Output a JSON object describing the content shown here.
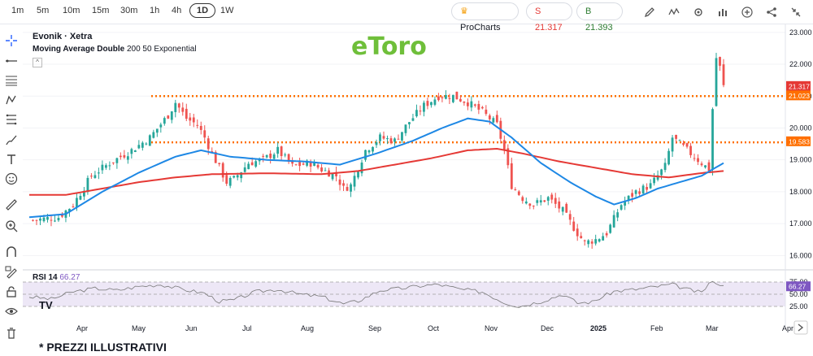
{
  "timeframes": [
    "1m",
    "5m",
    "10m",
    "15m",
    "30m",
    "1h",
    "4h",
    "1D",
    "1W"
  ],
  "active_timeframe": "1D",
  "procharts_label": "ProCharts",
  "sell_label": "S 21.317",
  "buy_label": "B 21.393",
  "colors": {
    "sell": "#e53935",
    "buy": "#2e7d32",
    "bull": "#26a69a",
    "bear": "#ef5350",
    "ema50": "#1e88e5",
    "ema200": "#e53935",
    "level": "#ff6f00",
    "rsi": "#7e57c2"
  },
  "chart": {
    "symbol": "Evonik · Xetra",
    "indicator_name": "Moving Average Double",
    "indicator_params": "200 50 Exponential",
    "brand_logo": "eToro",
    "rsi_label": "RSI 14",
    "rsi_value": "66.27"
  },
  "chart_data": {
    "type": "candlestick",
    "y_ticks": [
      "23.000",
      "22.000",
      "21.000",
      "20.000",
      "19.000",
      "18.000",
      "17.000",
      "16.000"
    ],
    "ylim": [
      15.6,
      23.2
    ],
    "x_ticks": [
      "Apr",
      "May",
      "Jun",
      "Jul",
      "Aug",
      "Sep",
      "Oct",
      "Nov",
      "Dec",
      "2025",
      "Feb",
      "Mar",
      "Apr"
    ],
    "price_labels": [
      {
        "text": "21.317",
        "value": 21.317,
        "color": "#e53935"
      },
      {
        "text": "21.023",
        "value": 21.023,
        "color": "#ff6f00"
      },
      {
        "text": "19.583",
        "value": 19.583,
        "color": "#ff6f00"
      }
    ],
    "levels": [
      21.0,
      19.55
    ],
    "rsi_ticks": [
      "75.00",
      "50.00",
      "25.00"
    ],
    "rsi_current": "66.27",
    "close_path": [
      [
        0,
        17.1
      ],
      [
        8,
        17.2
      ],
      [
        12,
        17.6
      ],
      [
        17,
        18.5
      ],
      [
        22,
        18.9
      ],
      [
        28,
        19.3
      ],
      [
        33,
        19.7
      ],
      [
        38,
        20.4
      ],
      [
        40,
        20.8
      ],
      [
        43,
        20.3
      ],
      [
        46,
        20.1
      ],
      [
        48,
        19.7
      ],
      [
        50,
        19.2
      ],
      [
        54,
        18.3
      ],
      [
        56,
        18.4
      ],
      [
        60,
        18.9
      ],
      [
        64,
        19.0
      ],
      [
        68,
        19.3
      ],
      [
        72,
        18.8
      ],
      [
        77,
        18.9
      ],
      [
        80,
        18.7
      ],
      [
        84,
        18.5
      ],
      [
        86,
        18.1
      ],
      [
        88,
        18.2
      ],
      [
        92,
        19.3
      ],
      [
        96,
        19.7
      ],
      [
        100,
        19.6
      ],
      [
        104,
        20.2
      ],
      [
        108,
        20.7
      ],
      [
        112,
        21.0
      ],
      [
        116,
        21.0
      ],
      [
        120,
        20.8
      ],
      [
        124,
        20.5
      ],
      [
        128,
        20.1
      ],
      [
        130,
        19.3
      ],
      [
        132,
        18.2
      ],
      [
        135,
        17.8
      ],
      [
        138,
        17.6
      ],
      [
        142,
        17.8
      ],
      [
        146,
        17.4
      ],
      [
        150,
        16.7
      ],
      [
        152,
        16.4
      ],
      [
        155,
        16.5
      ],
      [
        158,
        16.7
      ],
      [
        162,
        17.6
      ],
      [
        166,
        18.0
      ],
      [
        170,
        18.2
      ],
      [
        174,
        18.8
      ],
      [
        176,
        19.7
      ],
      [
        178,
        19.5
      ],
      [
        181,
        19.2
      ],
      [
        184,
        18.9
      ],
      [
        186,
        18.7
      ],
      [
        187,
        20.6
      ],
      [
        188,
        22.2
      ],
      [
        189,
        21.9
      ],
      [
        190,
        21.3
      ]
    ],
    "ema50_path": [
      [
        0,
        17.2
      ],
      [
        10,
        17.3
      ],
      [
        20,
        18.0
      ],
      [
        30,
        18.6
      ],
      [
        40,
        19.1
      ],
      [
        47,
        19.3
      ],
      [
        55,
        19.1
      ],
      [
        65,
        19.0
      ],
      [
        75,
        18.95
      ],
      [
        85,
        18.85
      ],
      [
        95,
        19.2
      ],
      [
        105,
        19.6
      ],
      [
        113,
        20.0
      ],
      [
        120,
        20.3
      ],
      [
        126,
        20.2
      ],
      [
        132,
        19.7
      ],
      [
        140,
        18.9
      ],
      [
        148,
        18.3
      ],
      [
        155,
        17.85
      ],
      [
        160,
        17.6
      ],
      [
        166,
        17.8
      ],
      [
        172,
        18.1
      ],
      [
        178,
        18.3
      ],
      [
        184,
        18.5
      ],
      [
        190,
        18.9
      ]
    ],
    "ema200_path": [
      [
        0,
        17.9
      ],
      [
        10,
        17.9
      ],
      [
        20,
        18.1
      ],
      [
        30,
        18.3
      ],
      [
        40,
        18.45
      ],
      [
        50,
        18.55
      ],
      [
        65,
        18.58
      ],
      [
        80,
        18.55
      ],
      [
        90,
        18.65
      ],
      [
        100,
        18.85
      ],
      [
        110,
        19.05
      ],
      [
        120,
        19.3
      ],
      [
        128,
        19.35
      ],
      [
        135,
        19.2
      ],
      [
        145,
        18.95
      ],
      [
        155,
        18.75
      ],
      [
        165,
        18.55
      ],
      [
        175,
        18.45
      ],
      [
        185,
        18.6
      ],
      [
        190,
        18.65
      ]
    ],
    "rsi_path": [
      [
        0,
        45
      ],
      [
        6,
        40
      ],
      [
        12,
        55
      ],
      [
        18,
        62
      ],
      [
        24,
        58
      ],
      [
        30,
        66
      ],
      [
        36,
        70
      ],
      [
        42,
        60
      ],
      [
        48,
        52
      ],
      [
        52,
        35
      ],
      [
        56,
        38
      ],
      [
        62,
        55
      ],
      [
        68,
        60
      ],
      [
        74,
        50
      ],
      [
        80,
        45
      ],
      [
        86,
        30
      ],
      [
        90,
        36
      ],
      [
        96,
        58
      ],
      [
        102,
        62
      ],
      [
        108,
        68
      ],
      [
        112,
        70
      ],
      [
        118,
        60
      ],
      [
        124,
        55
      ],
      [
        130,
        33
      ],
      [
        134,
        25
      ],
      [
        140,
        35
      ],
      [
        146,
        50
      ],
      [
        150,
        32
      ],
      [
        154,
        34
      ],
      [
        160,
        56
      ],
      [
        166,
        60
      ],
      [
        172,
        66
      ],
      [
        176,
        70
      ],
      [
        180,
        60
      ],
      [
        184,
        53
      ],
      [
        186,
        72
      ],
      [
        188,
        75
      ],
      [
        190,
        66
      ]
    ]
  }
}
